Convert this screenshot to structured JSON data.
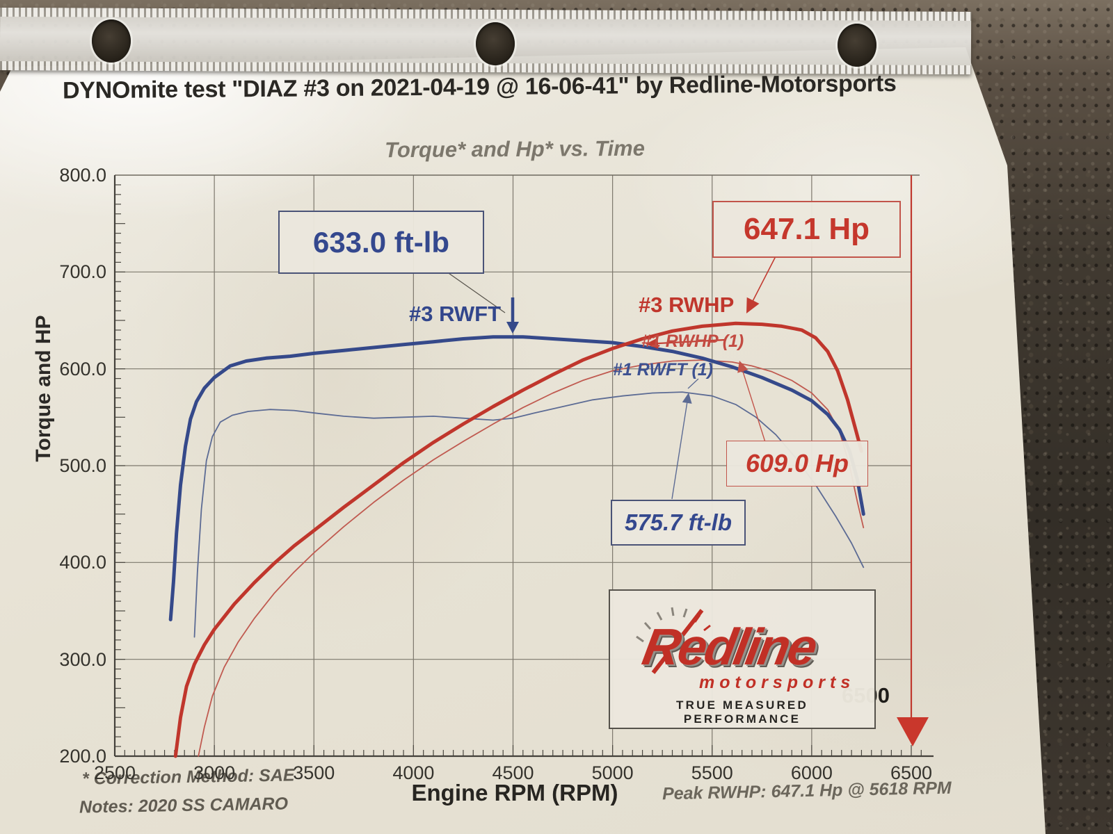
{
  "title": "DYNOmite test \"DIAZ #3 on 2021-04-19 @ 16-06-41\" by Redline-Motorsports",
  "chart_data": {
    "type": "line",
    "title": "Torque* and Hp* vs. Time",
    "xlabel": "Engine RPM (RPM)",
    "ylabel": "Torque and HP",
    "xlim": [
      2500,
      6500
    ],
    "ylim": [
      200,
      800
    ],
    "grid": true,
    "x_ticks": [
      "2500",
      "3000",
      "3500",
      "4000",
      "4500",
      "5000",
      "5500",
      "6000",
      "6500"
    ],
    "y_ticks": [
      "800.0",
      "700.0",
      "600.0",
      "500.0",
      "400.0",
      "300.0",
      "200.0"
    ],
    "end_marker": {
      "rpm": 6500,
      "label": "6500",
      "color": "#c0392f"
    },
    "series": [
      {
        "name": "#1 RWFT (1)",
        "unit": "ft-lb",
        "color": "#5c6b94",
        "width": 1.8,
        "points": [
          [
            2900,
            323
          ],
          [
            2915,
            390
          ],
          [
            2935,
            455
          ],
          [
            2960,
            505
          ],
          [
            2990,
            530
          ],
          [
            3030,
            545
          ],
          [
            3090,
            552
          ],
          [
            3170,
            556
          ],
          [
            3280,
            558
          ],
          [
            3400,
            557
          ],
          [
            3520,
            554
          ],
          [
            3650,
            551
          ],
          [
            3800,
            549
          ],
          [
            3950,
            550
          ],
          [
            4100,
            551
          ],
          [
            4250,
            549
          ],
          [
            4400,
            547
          ],
          [
            4500,
            549
          ],
          [
            4600,
            554
          ],
          [
            4750,
            561
          ],
          [
            4900,
            568
          ],
          [
            5050,
            572
          ],
          [
            5200,
            575
          ],
          [
            5350,
            576
          ],
          [
            5500,
            572
          ],
          [
            5620,
            563
          ],
          [
            5720,
            550
          ],
          [
            5820,
            532
          ],
          [
            5920,
            508
          ],
          [
            6020,
            480
          ],
          [
            6120,
            448
          ],
          [
            6200,
            420
          ],
          [
            6260,
            395
          ]
        ]
      },
      {
        "name": "#1 RWHP (1)",
        "unit": "Hp",
        "color": "#c05a50",
        "width": 1.8,
        "points": [
          [
            2920,
            200
          ],
          [
            2950,
            230
          ],
          [
            2990,
            262
          ],
          [
            3050,
            292
          ],
          [
            3120,
            318
          ],
          [
            3200,
            342
          ],
          [
            3300,
            368
          ],
          [
            3400,
            390
          ],
          [
            3500,
            410
          ],
          [
            3650,
            437
          ],
          [
            3800,
            462
          ],
          [
            3950,
            485
          ],
          [
            4100,
            506
          ],
          [
            4250,
            525
          ],
          [
            4400,
            543
          ],
          [
            4550,
            560
          ],
          [
            4700,
            575
          ],
          [
            4850,
            588
          ],
          [
            5000,
            598
          ],
          [
            5150,
            604
          ],
          [
            5300,
            608
          ],
          [
            5450,
            609
          ],
          [
            5600,
            607
          ],
          [
            5700,
            603
          ],
          [
            5800,
            597
          ],
          [
            5900,
            588
          ],
          [
            6000,
            575
          ],
          [
            6080,
            558
          ],
          [
            6140,
            535
          ],
          [
            6190,
            500
          ],
          [
            6230,
            462
          ],
          [
            6260,
            436
          ]
        ]
      },
      {
        "name": "#3 RWFT",
        "unit": "ft-lb",
        "color": "#35498a",
        "width": 5,
        "points": [
          [
            2780,
            341
          ],
          [
            2795,
            380
          ],
          [
            2810,
            430
          ],
          [
            2830,
            480
          ],
          [
            2855,
            520
          ],
          [
            2880,
            548
          ],
          [
            2910,
            566
          ],
          [
            2950,
            580
          ],
          [
            3000,
            591
          ],
          [
            3080,
            603
          ],
          [
            3160,
            608
          ],
          [
            3260,
            611
          ],
          [
            3380,
            613
          ],
          [
            3500,
            616
          ],
          [
            3650,
            619
          ],
          [
            3800,
            622
          ],
          [
            3950,
            625
          ],
          [
            4100,
            628
          ],
          [
            4250,
            631
          ],
          [
            4400,
            633
          ],
          [
            4550,
            633
          ],
          [
            4700,
            631
          ],
          [
            4850,
            629
          ],
          [
            5000,
            627
          ],
          [
            5150,
            623
          ],
          [
            5300,
            618
          ],
          [
            5450,
            611
          ],
          [
            5600,
            602
          ],
          [
            5750,
            591
          ],
          [
            5900,
            578
          ],
          [
            6000,
            567
          ],
          [
            6080,
            553
          ],
          [
            6140,
            537
          ],
          [
            6190,
            515
          ],
          [
            6230,
            485
          ],
          [
            6260,
            450
          ]
        ]
      },
      {
        "name": "#3 RWHP",
        "unit": "Hp",
        "color": "#c0362c",
        "width": 5,
        "points": [
          [
            2805,
            200
          ],
          [
            2830,
            240
          ],
          [
            2860,
            272
          ],
          [
            2900,
            295
          ],
          [
            2950,
            315
          ],
          [
            3000,
            331
          ],
          [
            3100,
            357
          ],
          [
            3200,
            379
          ],
          [
            3300,
            399
          ],
          [
            3400,
            417
          ],
          [
            3500,
            433
          ],
          [
            3650,
            457
          ],
          [
            3800,
            480
          ],
          [
            3950,
            503
          ],
          [
            4100,
            524
          ],
          [
            4250,
            543
          ],
          [
            4400,
            561
          ],
          [
            4550,
            578
          ],
          [
            4700,
            594
          ],
          [
            4850,
            609
          ],
          [
            5000,
            621
          ],
          [
            5150,
            631
          ],
          [
            5300,
            639
          ],
          [
            5450,
            644
          ],
          [
            5618,
            647
          ],
          [
            5750,
            646
          ],
          [
            5850,
            644
          ],
          [
            5950,
            640
          ],
          [
            6020,
            632
          ],
          [
            6080,
            618
          ],
          [
            6130,
            598
          ],
          [
            6180,
            568
          ],
          [
            6220,
            538
          ],
          [
            6250,
            515
          ]
        ]
      }
    ],
    "annotations": {
      "peak_torque": "633.0 ft-lb",
      "peak_hp": "647.1 Hp",
      "run1_hp": "609.0 Hp",
      "run1_torque": "575.7 ft-lb",
      "label_rwft3": "#3 RWFT",
      "label_rwhp3": "#3 RWHP",
      "label_rwhp1": "#1 RWHP (1)",
      "label_rwft1": "#1 RWFT (1)",
      "end_marker_label": "6500"
    }
  },
  "footer": {
    "correction": "* Correction Method: SAE",
    "notes": "Notes: 2020 SS CAMARO",
    "peak": "Peak RWHP: 647.1 Hp @ 5618 RPM"
  },
  "logo": {
    "brand": "Redline",
    "sub": "motorsports",
    "tagline": "TRUE MEASURED PERFORMANCE"
  }
}
